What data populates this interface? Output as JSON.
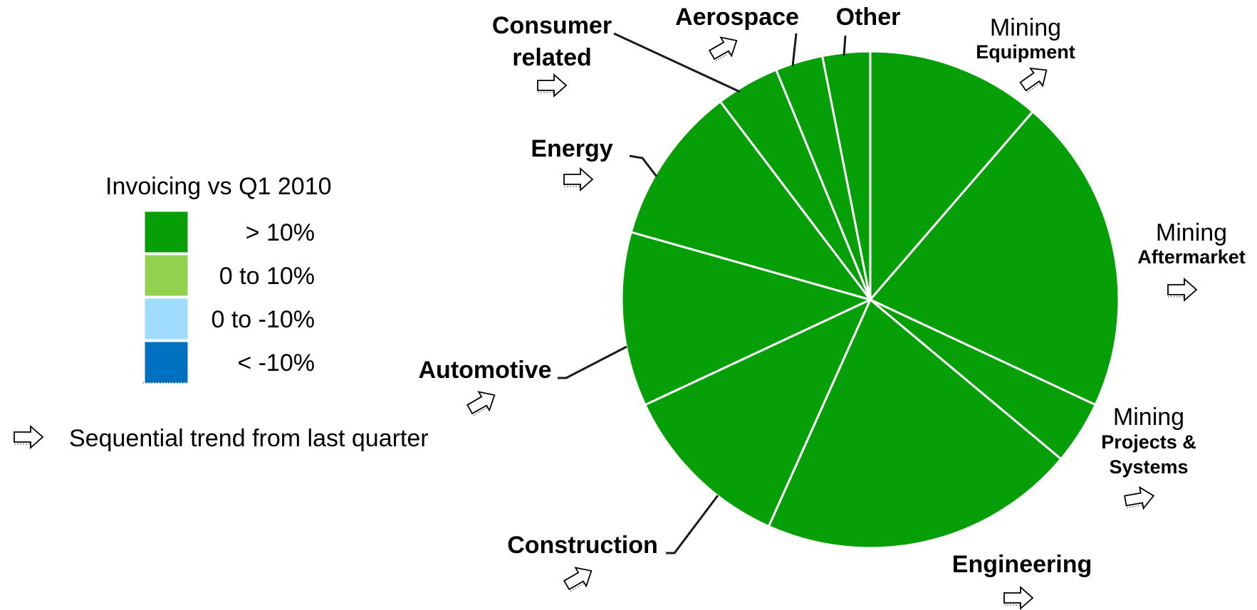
{
  "legend": {
    "title": "Invoicing vs Q1 2010",
    "items": [
      {
        "label": "> 10%",
        "color": "#079f07"
      },
      {
        "label": "0 to 10%",
        "color": "#92d050"
      },
      {
        "label": "0 to -10%",
        "color": "#9fdcff"
      },
      {
        "label": "< -10%",
        "color": "#0070c0"
      }
    ],
    "trend_note": "Sequential trend from last quarter",
    "trend_icon": "arrow-icon"
  },
  "chart_data": {
    "type": "pie",
    "legend_placement": "left",
    "slices": [
      {
        "name": "Mining Equipment",
        "label_lines": [
          "Mining",
          "Equipment"
        ],
        "value": 11,
        "category": "> 10%",
        "trend": "up"
      },
      {
        "name": "Mining Aftermarket",
        "label_lines": [
          "Mining",
          "Aftermarket"
        ],
        "value": 20,
        "category": "> 10%",
        "trend": "flat"
      },
      {
        "name": "Mining Projects & Systems",
        "label_lines": [
          "Mining",
          "Projects &",
          "Systems"
        ],
        "value": 4,
        "category": "> 10%",
        "trend": "flat"
      },
      {
        "name": "Engineering",
        "label_lines": [
          "Engineering"
        ],
        "value": 20,
        "category": "> 10%",
        "trend": "flat"
      },
      {
        "name": "Construction",
        "label_lines": [
          "Construction"
        ],
        "value": 11,
        "category": "> 10%",
        "trend": "up"
      },
      {
        "name": "Automotive",
        "label_lines": [
          "Automotive"
        ],
        "value": 11,
        "category": "> 10%",
        "trend": "up"
      },
      {
        "name": "Energy",
        "label_lines": [
          "Energy"
        ],
        "value": 10,
        "category": "> 10%",
        "trend": "flat"
      },
      {
        "name": "Consumer related",
        "label_lines": [
          "Consumer",
          "related"
        ],
        "value": 4,
        "category": "> 10%",
        "trend": "flat"
      },
      {
        "name": "Aerospace",
        "label_lines": [
          "Aerospace"
        ],
        "value": 3,
        "category": "> 10%",
        "trend": "up"
      },
      {
        "name": "Other",
        "label_lines": [
          "Other"
        ],
        "value": 3,
        "category": "> 10%",
        "trend": "none"
      }
    ]
  }
}
